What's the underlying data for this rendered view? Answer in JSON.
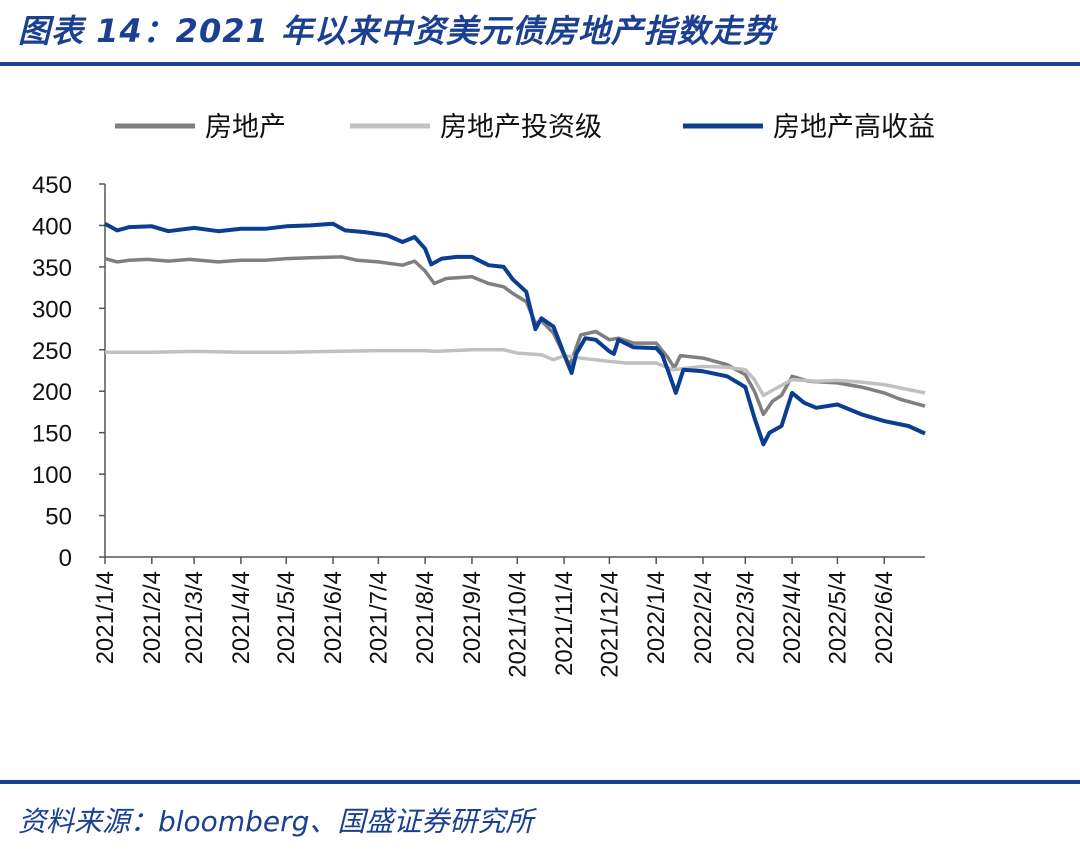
{
  "header": {
    "title": "图表 14：2021 年以来中资美元债房地产指数走势"
  },
  "footer": {
    "source": "资料来源：bloomberg、国盛证券研究所"
  },
  "chart_data": {
    "type": "line",
    "title": "",
    "xlabel": "",
    "ylabel": "",
    "ylim": [
      0,
      450
    ],
    "yticks": [
      0,
      50,
      100,
      150,
      200,
      250,
      300,
      350,
      400,
      450
    ],
    "xticks": [
      "2021/1/4",
      "2021/2/4",
      "2021/3/4",
      "2021/4/4",
      "2021/5/4",
      "2021/6/4",
      "2021/7/4",
      "2021/8/4",
      "2021/9/4",
      "2021/10/4",
      "2021/11/4",
      "2021/12/4",
      "2022/1/4",
      "2022/2/4",
      "2022/3/4",
      "2022/4/4",
      "2022/5/4",
      "2022/6/4"
    ],
    "xlim": [
      "2021-01-04",
      "2022-07-01"
    ],
    "grid": false,
    "legend_position": "top",
    "series": [
      {
        "name": "房地产",
        "color": "#7f7f7f",
        "points": [
          [
            "2021-01-04",
            360
          ],
          [
            "2021-01-12",
            356
          ],
          [
            "2021-01-20",
            358
          ],
          [
            "2021-02-01",
            359
          ],
          [
            "2021-02-15",
            357
          ],
          [
            "2021-03-01",
            359
          ],
          [
            "2021-03-20",
            356
          ],
          [
            "2021-04-04",
            358
          ],
          [
            "2021-04-20",
            358
          ],
          [
            "2021-05-04",
            360
          ],
          [
            "2021-05-20",
            361
          ],
          [
            "2021-06-10",
            362
          ],
          [
            "2021-06-20",
            358
          ],
          [
            "2021-07-04",
            356
          ],
          [
            "2021-07-20",
            352
          ],
          [
            "2021-07-28",
            357
          ],
          [
            "2021-08-04",
            345
          ],
          [
            "2021-08-10",
            330
          ],
          [
            "2021-08-18",
            336
          ],
          [
            "2021-09-04",
            338
          ],
          [
            "2021-09-15",
            330
          ],
          [
            "2021-09-25",
            326
          ],
          [
            "2021-10-01",
            318
          ],
          [
            "2021-10-10",
            308
          ],
          [
            "2021-10-16",
            282
          ],
          [
            "2021-10-20",
            285
          ],
          [
            "2021-10-28",
            270
          ],
          [
            "2021-11-05",
            240
          ],
          [
            "2021-11-08",
            232
          ],
          [
            "2021-11-15",
            268
          ],
          [
            "2021-11-25",
            272
          ],
          [
            "2021-12-04",
            262
          ],
          [
            "2021-12-10",
            264
          ],
          [
            "2021-12-20",
            258
          ],
          [
            "2022-01-04",
            258
          ],
          [
            "2022-01-12",
            240
          ],
          [
            "2022-01-16",
            228
          ],
          [
            "2022-01-20",
            243
          ],
          [
            "2022-02-04",
            240
          ],
          [
            "2022-02-20",
            232
          ],
          [
            "2022-03-04",
            220
          ],
          [
            "2022-03-10",
            200
          ],
          [
            "2022-03-16",
            172
          ],
          [
            "2022-03-22",
            188
          ],
          [
            "2022-03-28",
            195
          ],
          [
            "2022-04-04",
            218
          ],
          [
            "2022-04-15",
            212
          ],
          [
            "2022-05-04",
            210
          ],
          [
            "2022-05-20",
            205
          ],
          [
            "2022-06-04",
            198
          ],
          [
            "2022-06-15",
            190
          ],
          [
            "2022-07-01",
            182
          ]
        ]
      },
      {
        "name": "房地产投资级",
        "color": "#c0c0c0",
        "points": [
          [
            "2021-01-04",
            247
          ],
          [
            "2021-02-04",
            247
          ],
          [
            "2021-03-04",
            248
          ],
          [
            "2021-04-04",
            247
          ],
          [
            "2021-05-04",
            247
          ],
          [
            "2021-06-04",
            248
          ],
          [
            "2021-07-04",
            249
          ],
          [
            "2021-08-04",
            249
          ],
          [
            "2021-08-10",
            248
          ],
          [
            "2021-09-04",
            250
          ],
          [
            "2021-09-25",
            250
          ],
          [
            "2021-10-04",
            246
          ],
          [
            "2021-10-20",
            244
          ],
          [
            "2021-10-28",
            238
          ],
          [
            "2021-11-04",
            243
          ],
          [
            "2021-11-15",
            240
          ],
          [
            "2021-12-04",
            236
          ],
          [
            "2021-12-15",
            234
          ],
          [
            "2022-01-04",
            234
          ],
          [
            "2022-01-15",
            226
          ],
          [
            "2022-02-04",
            230
          ],
          [
            "2022-02-20",
            229
          ],
          [
            "2022-03-04",
            226
          ],
          [
            "2022-03-10",
            214
          ],
          [
            "2022-03-16",
            195
          ],
          [
            "2022-03-25",
            204
          ],
          [
            "2022-04-04",
            214
          ],
          [
            "2022-04-20",
            212
          ],
          [
            "2022-05-04",
            213
          ],
          [
            "2022-05-20",
            211
          ],
          [
            "2022-06-04",
            208
          ],
          [
            "2022-06-20",
            202
          ],
          [
            "2022-07-01",
            198
          ]
        ]
      },
      {
        "name": "房地产高收益",
        "color": "#0b3d91",
        "points": [
          [
            "2021-01-04",
            402
          ],
          [
            "2021-01-12",
            394
          ],
          [
            "2021-01-20",
            398
          ],
          [
            "2021-02-04",
            399
          ],
          [
            "2021-02-15",
            393
          ],
          [
            "2021-03-04",
            397
          ],
          [
            "2021-03-20",
            393
          ],
          [
            "2021-04-04",
            396
          ],
          [
            "2021-04-20",
            396
          ],
          [
            "2021-05-04",
            399
          ],
          [
            "2021-05-20",
            400
          ],
          [
            "2021-06-04",
            402
          ],
          [
            "2021-06-12",
            394
          ],
          [
            "2021-06-25",
            392
          ],
          [
            "2021-07-10",
            388
          ],
          [
            "2021-07-20",
            380
          ],
          [
            "2021-07-28",
            386
          ],
          [
            "2021-08-04",
            372
          ],
          [
            "2021-08-08",
            353
          ],
          [
            "2021-08-15",
            360
          ],
          [
            "2021-08-25",
            362
          ],
          [
            "2021-09-04",
            362
          ],
          [
            "2021-09-15",
            352
          ],
          [
            "2021-09-25",
            350
          ],
          [
            "2021-10-01",
            335
          ],
          [
            "2021-10-10",
            320
          ],
          [
            "2021-10-16",
            275
          ],
          [
            "2021-10-20",
            288
          ],
          [
            "2021-10-28",
            278
          ],
          [
            "2021-11-05",
            240
          ],
          [
            "2021-11-09",
            222
          ],
          [
            "2021-11-12",
            245
          ],
          [
            "2021-11-18",
            264
          ],
          [
            "2021-11-25",
            262
          ],
          [
            "2021-12-04",
            248
          ],
          [
            "2021-12-07",
            245
          ],
          [
            "2021-12-10",
            262
          ],
          [
            "2021-12-20",
            253
          ],
          [
            "2022-01-04",
            252
          ],
          [
            "2022-01-08",
            244
          ],
          [
            "2022-01-12",
            224
          ],
          [
            "2022-01-17",
            198
          ],
          [
            "2022-01-22",
            226
          ],
          [
            "2022-02-04",
            224
          ],
          [
            "2022-02-20",
            218
          ],
          [
            "2022-03-04",
            205
          ],
          [
            "2022-03-10",
            168
          ],
          [
            "2022-03-16",
            136
          ],
          [
            "2022-03-20",
            150
          ],
          [
            "2022-03-28",
            158
          ],
          [
            "2022-04-04",
            198
          ],
          [
            "2022-04-12",
            186
          ],
          [
            "2022-04-20",
            180
          ],
          [
            "2022-05-04",
            184
          ],
          [
            "2022-05-20",
            172
          ],
          [
            "2022-06-04",
            164
          ],
          [
            "2022-06-20",
            158
          ],
          [
            "2022-07-01",
            149
          ]
        ]
      }
    ]
  }
}
